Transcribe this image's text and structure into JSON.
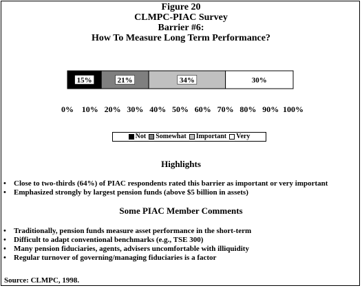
{
  "chart_data": {
    "type": "bar",
    "orientation": "horizontal",
    "stacked": true,
    "title": "Figure 20",
    "subtitle_lines": [
      "CLMPC-PIAC Survey",
      "Barrier #6:",
      "How To Measure Long Term Performance?"
    ],
    "xlim": [
      0,
      100
    ],
    "x_tick_labels": [
      "0%",
      "10%",
      "20%",
      "30%",
      "40%",
      "50%",
      "60%",
      "70%",
      "80%",
      "90%",
      "100%"
    ],
    "series": [
      {
        "name": "Not",
        "value": 15,
        "label": "15%",
        "color": "#000000"
      },
      {
        "name": "Somewhat",
        "value": 21,
        "label": "21%",
        "color": "#7f7f7f"
      },
      {
        "name": "Important",
        "value": 34,
        "label": "34%",
        "color": "#c0c0c0"
      },
      {
        "name": "Very",
        "value": 30,
        "label": "30%",
        "color": "#ffffff"
      }
    ],
    "legend_position": "bottom",
    "grid": false
  },
  "highlights": {
    "heading": "Highlights",
    "items": [
      "Close to two-thirds (64%) of PIAC respondents rated this barrier as important or very important",
      "Emphasized strongly by largest pension funds (above $5 billion in assets)"
    ]
  },
  "comments": {
    "heading": "Some PIAC Member Comments",
    "items": [
      "Traditionally, pension funds measure asset performance in the short-term",
      "Difficult to adapt conventional benchmarks (e.g., TSE 300)",
      "Many pension fiduciaries, agents, advisers uncomfortable with illiquidity",
      "Regular turnover of governing/managing fiduciaries is a factor"
    ]
  },
  "source": "Source: CLMPC, 1998."
}
